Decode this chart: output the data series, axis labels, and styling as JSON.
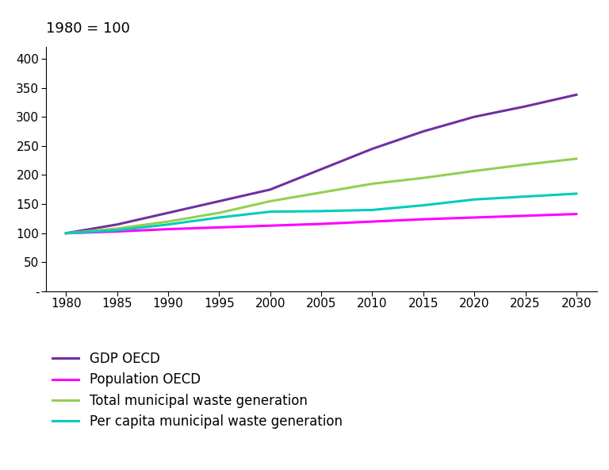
{
  "title": "1980 = 100",
  "years": [
    1980,
    1985,
    1990,
    1995,
    2000,
    2005,
    2010,
    2015,
    2020,
    2025,
    2030
  ],
  "series": {
    "GDP OECD": [
      100,
      115,
      135,
      155,
      175,
      210,
      245,
      275,
      300,
      318,
      338
    ],
    "Population OECD": [
      100,
      103,
      107,
      110,
      113,
      116,
      120,
      124,
      127,
      130,
      133
    ],
    "Total municipal waste generation": [
      100,
      108,
      120,
      135,
      155,
      170,
      185,
      195,
      207,
      218,
      228
    ],
    "Per capita municipal waste generation": [
      100,
      105,
      115,
      127,
      137,
      138,
      140,
      148,
      158,
      163,
      168
    ]
  },
  "colors": {
    "GDP OECD": "#7030A0",
    "Population OECD": "#FF00FF",
    "Total municipal waste generation": "#92D050",
    "Per capita municipal waste generation": "#00CCBB"
  },
  "ylim": [
    0,
    420
  ],
  "yticks": [
    0,
    50,
    100,
    150,
    200,
    250,
    300,
    350,
    400
  ],
  "ytick_labels": [
    "-",
    "50",
    "100",
    "150",
    "200",
    "250",
    "300",
    "350",
    "400"
  ],
  "xlim": [
    1978,
    2032
  ],
  "xticks": [
    1980,
    1985,
    1990,
    1995,
    2000,
    2005,
    2010,
    2015,
    2020,
    2025,
    2030
  ],
  "background_color": "#ffffff",
  "line_width": 2.2,
  "legend_fontsize": 12,
  "tick_fontsize": 11,
  "title_fontsize": 13
}
